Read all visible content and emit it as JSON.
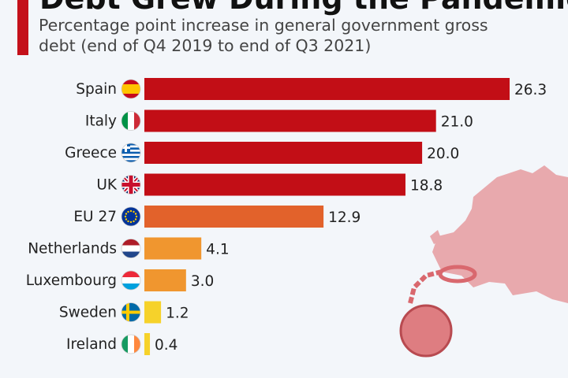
{
  "chart_data": {
    "type": "bar",
    "orientation": "horizontal",
    "title": "Debt Grew During the Pandemic",
    "subtitle": "Percentage point increase in general government gross debt (end of Q4 2019 to end of Q3 2021)",
    "categories": [
      "Spain",
      "Italy",
      "Greece",
      "UK",
      "EU 27",
      "Netherlands",
      "Luxembourg",
      "Sweden",
      "Ireland"
    ],
    "values": [
      26.3,
      21.0,
      20.0,
      18.8,
      12.9,
      4.1,
      3.0,
      1.2,
      0.4
    ],
    "value_labels": [
      "26.3",
      "21.0",
      "20.0",
      "18.8",
      "12.9",
      "4.1",
      "3.0",
      "1.2",
      "0.4"
    ],
    "bar_colors": [
      "#c20e16",
      "#c20e16",
      "#c20e16",
      "#c20e16",
      "#e2622b",
      "#f0962f",
      "#f0962f",
      "#f6d22a",
      "#f6d22a"
    ],
    "flag_icons": [
      "spain-flag-icon",
      "italy-flag-icon",
      "greece-flag-icon",
      "uk-flag-icon",
      "eu-flag-icon",
      "netherlands-flag-icon",
      "luxembourg-flag-icon",
      "sweden-flag-icon",
      "ireland-flag-icon"
    ],
    "xlim": [
      0,
      27
    ],
    "grid": false,
    "xlabel": "",
    "ylabel": ""
  },
  "colors": {
    "accent": "#c4101a",
    "background": "#f3f6fa",
    "map": "#e8a9ad"
  }
}
